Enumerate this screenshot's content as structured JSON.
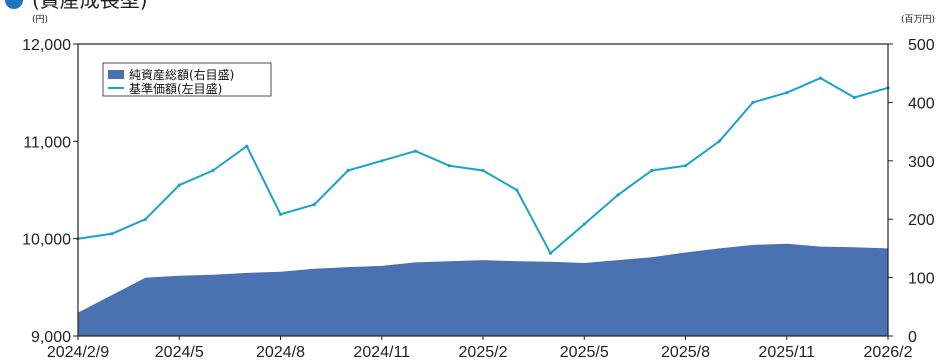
{
  "header": {
    "title": "(資産成長型)"
  },
  "chart_data": {
    "type": "line+area",
    "x": [
      "2024/2/9",
      "2024/3",
      "2024/4",
      "2024/5",
      "2024/6",
      "2024/7",
      "2024/8",
      "2024/9",
      "2024/10",
      "2024/11",
      "2024/12",
      "2025/1",
      "2025/2",
      "2025/3",
      "2025/4",
      "2025/5",
      "2025/6",
      "2025/7",
      "2025/8",
      "2025/9",
      "2025/10",
      "2025/11",
      "2025/12",
      "2026/1",
      "2026/2"
    ],
    "x_tick_labels": [
      "2024/2/9",
      "2024/5",
      "2024/8",
      "2024/11",
      "2025/2",
      "2025/5",
      "2025/8",
      "2025/11",
      "2026/2"
    ],
    "series": [
      {
        "name": "純資産総額(右目盛)",
        "axis": "right",
        "style": "area",
        "color": "#4a72b0",
        "values": [
          40,
          70,
          100,
          103,
          105,
          108,
          110,
          115,
          118,
          120,
          126,
          128,
          130,
          128,
          127,
          125,
          130,
          135,
          143,
          150,
          156,
          158,
          153,
          152,
          150
        ]
      },
      {
        "name": "基準価額(左目盛)",
        "axis": "left",
        "style": "line",
        "color": "#1aa3c8",
        "values": [
          10000,
          10050,
          10200,
          10550,
          10700,
          10950,
          10250,
          10350,
          10700,
          10800,
          10900,
          10750,
          10700,
          10500,
          9850,
          10150,
          10450,
          10700,
          10750,
          11000,
          11400,
          11500,
          11650,
          11450,
          11550
        ]
      }
    ],
    "y_left": {
      "unit": "(円)",
      "min": 9000,
      "max": 12000,
      "ticks": [
        "9,000",
        "10,000",
        "11,000",
        "12,000"
      ]
    },
    "y_right": {
      "unit": "(百万円)",
      "min": 0,
      "max": 500,
      "ticks": [
        "0",
        "100",
        "200",
        "300",
        "400",
        "500"
      ]
    },
    "legend": {
      "placement": "top-left"
    },
    "grid": false
  },
  "colors": {
    "area": "#4a72b0",
    "line": "#1aa3c8",
    "title_dot": "#1f73c2",
    "frame": "#222222"
  }
}
